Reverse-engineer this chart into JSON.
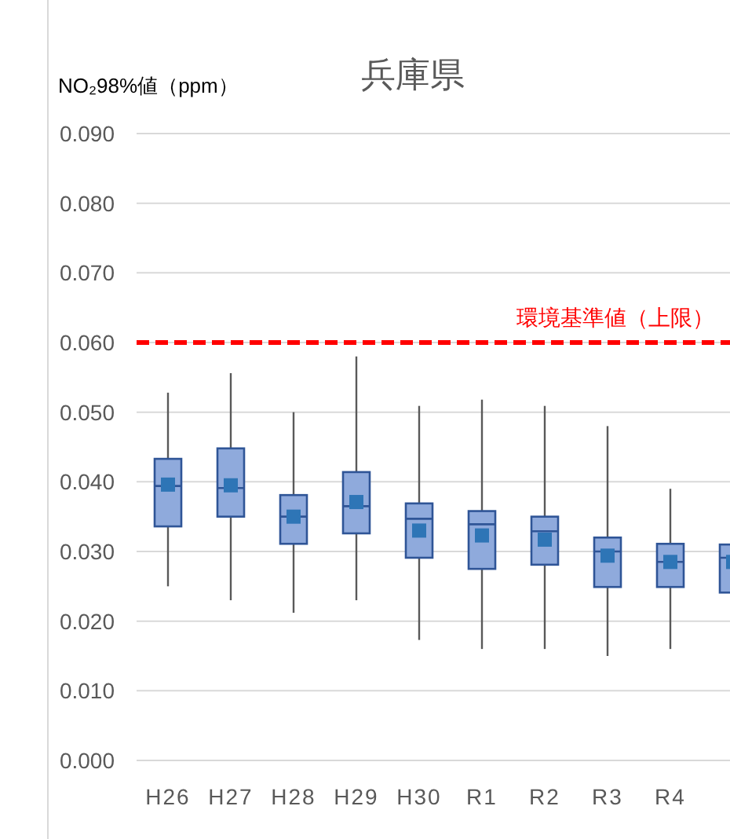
{
  "chart_data": {
    "type": "box",
    "title": "兵庫県",
    "ylabel": "NO₂98%値（ppm）",
    "categories": [
      "H26",
      "H27",
      "H28",
      "H29",
      "H30",
      "R1",
      "R2",
      "R3",
      "R4",
      null
    ],
    "boxes": [
      {
        "low": 0.025,
        "q1": 0.0336,
        "median": 0.0394,
        "q3": 0.0433,
        "high": 0.0528,
        "mean": 0.0396
      },
      {
        "low": 0.023,
        "q1": 0.035,
        "median": 0.0391,
        "q3": 0.0448,
        "high": 0.0556,
        "mean": 0.0395
      },
      {
        "low": 0.0212,
        "q1": 0.0311,
        "median": 0.035,
        "q3": 0.0381,
        "high": 0.05,
        "mean": 0.035
      },
      {
        "low": 0.023,
        "q1": 0.0326,
        "median": 0.0365,
        "q3": 0.0414,
        "high": 0.058,
        "mean": 0.0371
      },
      {
        "low": 0.0173,
        "q1": 0.0291,
        "median": 0.0347,
        "q3": 0.0369,
        "high": 0.0509,
        "mean": 0.033
      },
      {
        "low": 0.016,
        "q1": 0.0275,
        "median": 0.0339,
        "q3": 0.0358,
        "high": 0.0518,
        "mean": 0.0323
      },
      {
        "low": 0.016,
        "q1": 0.0281,
        "median": 0.0329,
        "q3": 0.035,
        "high": 0.0509,
        "mean": 0.0317
      },
      {
        "low": 0.015,
        "q1": 0.0249,
        "median": 0.03,
        "q3": 0.032,
        "high": 0.048,
        "mean": 0.0294
      },
      {
        "low": 0.016,
        "q1": 0.0249,
        "median": 0.0285,
        "q3": 0.0311,
        "high": 0.039,
        "mean": 0.0285
      },
      {
        "low": null,
        "q1": 0.0241,
        "median": 0.0291,
        "q3": 0.031,
        "high": null,
        "mean": 0.0285
      }
    ],
    "color": "#8faadc",
    "ylim": [
      0,
      0.09
    ],
    "yticks": [
      {
        "value": 0,
        "label": "0.000"
      },
      {
        "value": 0.01,
        "label": "0.010"
      },
      {
        "value": 0.02,
        "label": "0.020"
      },
      {
        "value": 0.03,
        "label": "0.030"
      },
      {
        "value": 0.04,
        "label": "0.040"
      },
      {
        "value": 0.05,
        "label": "0.050"
      },
      {
        "value": 0.06,
        "label": "0.060"
      },
      {
        "value": 0.07,
        "label": "0.070"
      },
      {
        "value": 0.08,
        "label": "0.080"
      },
      {
        "value": 0.09,
        "label": "0.090"
      }
    ],
    "grid": "y",
    "ref_lines": [
      {
        "axis": "y",
        "value": 0.06,
        "label": "環境基準値（上限）",
        "color": "#ff0000",
        "line_style": "dashed"
      }
    ]
  }
}
